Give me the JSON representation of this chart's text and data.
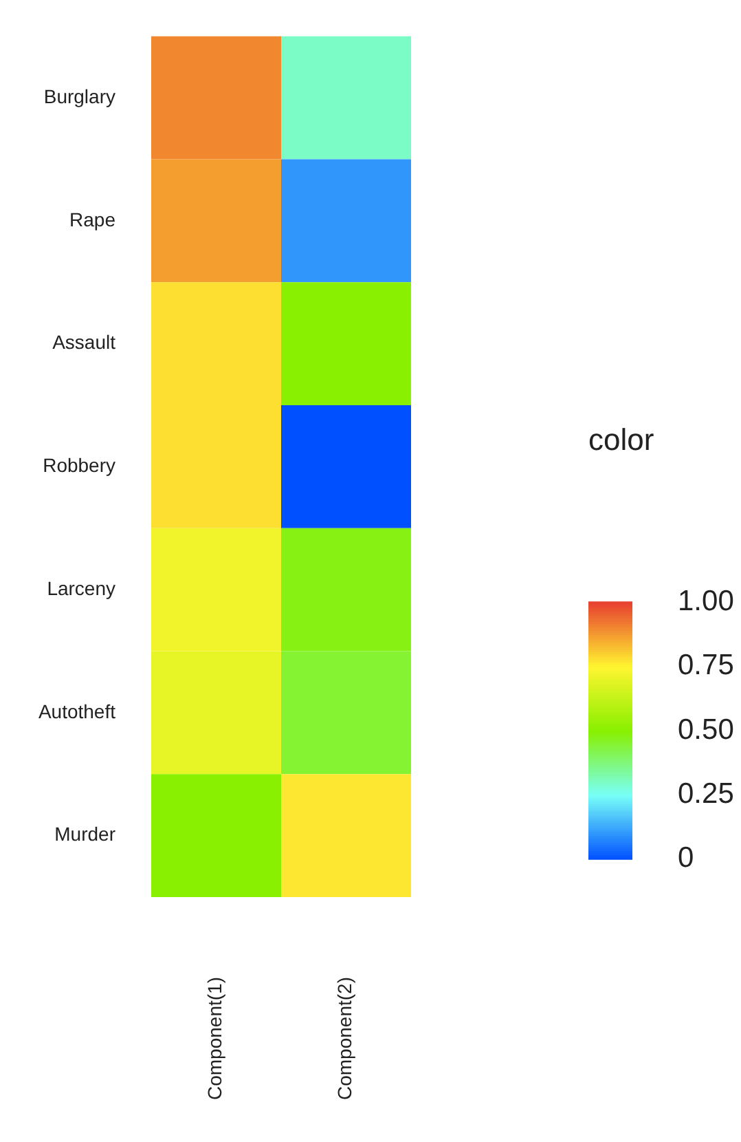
{
  "chart_data": {
    "type": "heatmap",
    "categories": [
      "Component(1)",
      "Component(2)"
    ],
    "y_categories": [
      "Burglary",
      "Rape",
      "Assault",
      "Robbery",
      "Larceny",
      "Autotheft",
      "Murder"
    ],
    "cells": [
      [
        0.9,
        0.3
      ],
      [
        0.87,
        0.1
      ],
      [
        0.78,
        0.5
      ],
      [
        0.78,
        0
      ],
      [
        0.72,
        0.48
      ],
      [
        0.7,
        0.45
      ],
      [
        0.5,
        0.77
      ]
    ],
    "clabel": "color",
    "clim": [
      0,
      1
    ],
    "cticks": [
      {
        "value": 1,
        "label": "1.00"
      },
      {
        "value": 0.75,
        "label": "0.75"
      },
      {
        "value": 0.5,
        "label": "0.50"
      },
      {
        "value": 0.25,
        "label": "0.25"
      },
      {
        "value": 0,
        "label": "0"
      }
    ]
  }
}
